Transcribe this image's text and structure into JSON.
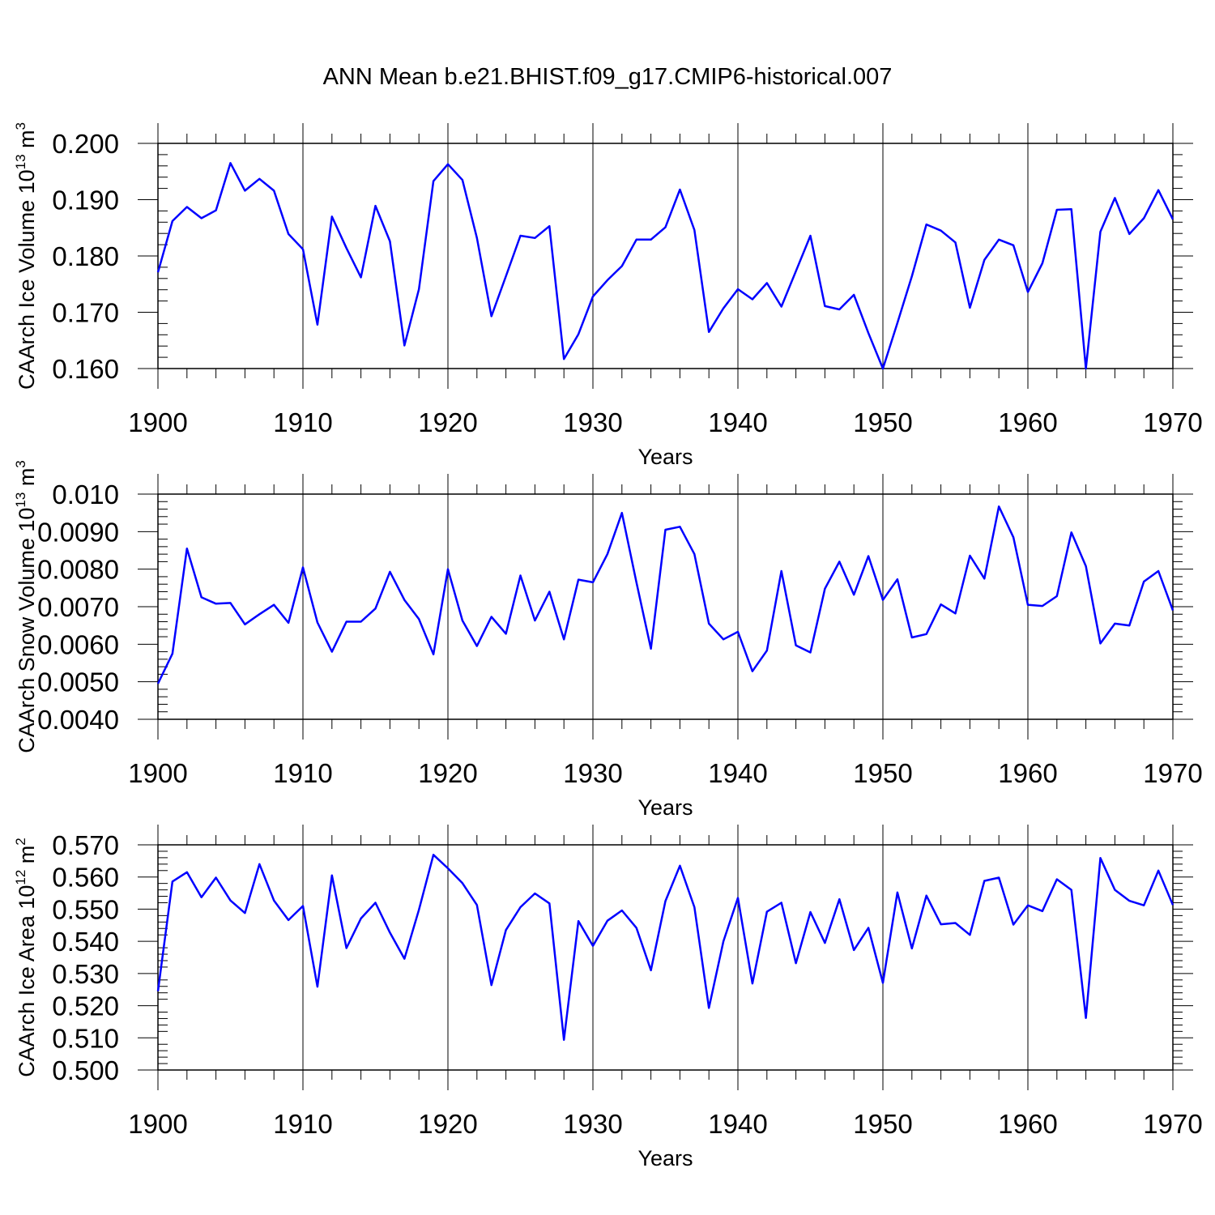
{
  "title": "ANN Mean b.e21.BHIST.f09_g17.CMIP6-historical.007",
  "line_color": "#0000ff",
  "chart_data": [
    {
      "type": "line",
      "ylabel_main": "CAArch Ice Volume 10",
      "ylabel_exp": "13",
      "ylabel_unit": "m",
      "ylabel_unit_exp": "3",
      "xlabel": "Years",
      "xlim": [
        1900,
        1970
      ],
      "ylim": [
        0.16,
        0.2
      ],
      "ytick_step": 0.01,
      "ytick_labels": [
        "0.160",
        "0.170",
        "0.180",
        "0.190",
        "0.200"
      ],
      "xtick_labels": [
        "1900",
        "1910",
        "1920",
        "1930",
        "1940",
        "1950",
        "1960",
        "1970"
      ],
      "x_start": 1900,
      "values": [
        0.1771,
        0.1862,
        0.1887,
        0.1867,
        0.1881,
        0.1965,
        0.1916,
        0.1937,
        0.1916,
        0.1839,
        0.1812,
        0.1678,
        0.187,
        0.1814,
        0.1762,
        0.1889,
        0.1826,
        0.1641,
        0.1741,
        0.1933,
        0.1963,
        0.1935,
        0.1832,
        0.1693,
        0.1764,
        0.1836,
        0.1832,
        0.1853,
        0.1617,
        0.1661,
        0.1728,
        0.1757,
        0.1782,
        0.1829,
        0.1829,
        0.1851,
        0.1918,
        0.1846,
        0.1665,
        0.1707,
        0.1741,
        0.1723,
        0.1752,
        0.171,
        0.1773,
        0.1836,
        0.1711,
        0.1705,
        0.1731,
        0.1663,
        0.16,
        0.1681,
        0.1764,
        0.1856,
        0.1845,
        0.1824,
        0.1708,
        0.1793,
        0.1829,
        0.1819,
        0.1736,
        0.1787,
        0.1882,
        0.1883,
        0.16,
        0.1843,
        0.1903,
        0.1839,
        0.1867,
        0.1917,
        0.1865
      ]
    },
    {
      "type": "line",
      "ylabel_main": "CAArch Snow Volume 10",
      "ylabel_exp": "13",
      "ylabel_unit": "m",
      "ylabel_unit_exp": "3",
      "xlabel": "Years",
      "xlim": [
        1900,
        1970
      ],
      "ylim": [
        0.004,
        0.01
      ],
      "ytick_step": 0.001,
      "ytick_labels": [
        "0.0040",
        "0.0050",
        "0.0060",
        "0.0070",
        "0.0080",
        "0.0090",
        "0.010"
      ],
      "xtick_labels": [
        "1900",
        "1910",
        "1920",
        "1930",
        "1940",
        "1950",
        "1960",
        "1970"
      ],
      "x_start": 1900,
      "values": [
        0.00495,
        0.00575,
        0.00855,
        0.00725,
        0.00708,
        0.0071,
        0.00653,
        0.0068,
        0.00705,
        0.00657,
        0.00805,
        0.00658,
        0.0058,
        0.0066,
        0.0066,
        0.00695,
        0.00793,
        0.00718,
        0.00667,
        0.00573,
        0.008,
        0.00663,
        0.00595,
        0.00673,
        0.00628,
        0.00783,
        0.00663,
        0.0074,
        0.00613,
        0.00772,
        0.00765,
        0.0084,
        0.0095,
        0.00765,
        0.00588,
        0.00905,
        0.00913,
        0.0084,
        0.00655,
        0.00613,
        0.00633,
        0.00528,
        0.00583,
        0.00795,
        0.00597,
        0.00578,
        0.00748,
        0.0082,
        0.00732,
        0.00835,
        0.00718,
        0.00773,
        0.00618,
        0.00627,
        0.00706,
        0.00682,
        0.00836,
        0.00775,
        0.00967,
        0.00885,
        0.00705,
        0.00702,
        0.00728,
        0.00898,
        0.00808,
        0.00602,
        0.00655,
        0.0065,
        0.00767,
        0.00795,
        0.0069
      ]
    },
    {
      "type": "line",
      "ylabel_main": "CAArch Ice Area 10",
      "ylabel_exp": "12",
      "ylabel_unit": "m",
      "ylabel_unit_exp": "2",
      "xlabel": "Years",
      "xlim": [
        1900,
        1970
      ],
      "ylim": [
        0.5,
        0.57
      ],
      "ytick_step": 0.01,
      "ytick_labels": [
        "0.500",
        "0.510",
        "0.520",
        "0.530",
        "0.540",
        "0.550",
        "0.560",
        "0.570"
      ],
      "xtick_labels": [
        "1900",
        "1910",
        "1920",
        "1930",
        "1940",
        "1950",
        "1960",
        "1970"
      ],
      "x_start": 1900,
      "values": [
        0.5245,
        0.5586,
        0.5615,
        0.5537,
        0.5598,
        0.5527,
        0.5488,
        0.564,
        0.5527,
        0.5466,
        0.551,
        0.5259,
        0.5605,
        0.5379,
        0.5471,
        0.552,
        0.5427,
        0.5346,
        0.5498,
        0.5669,
        0.5627,
        0.5581,
        0.5513,
        0.5264,
        0.5435,
        0.5506,
        0.5549,
        0.5518,
        0.5094,
        0.5463,
        0.5386,
        0.5464,
        0.5496,
        0.5442,
        0.531,
        0.5525,
        0.5635,
        0.5506,
        0.5193,
        0.54,
        0.5535,
        0.5269,
        0.5492,
        0.552,
        0.5332,
        0.5491,
        0.5395,
        0.5531,
        0.5373,
        0.5442,
        0.5271,
        0.5552,
        0.5378,
        0.5542,
        0.5453,
        0.5457,
        0.542,
        0.5588,
        0.5598,
        0.5452,
        0.5512,
        0.5494,
        0.5593,
        0.556,
        0.5162,
        0.5659,
        0.556,
        0.5526,
        0.5512,
        0.562,
        0.5513
      ]
    }
  ]
}
